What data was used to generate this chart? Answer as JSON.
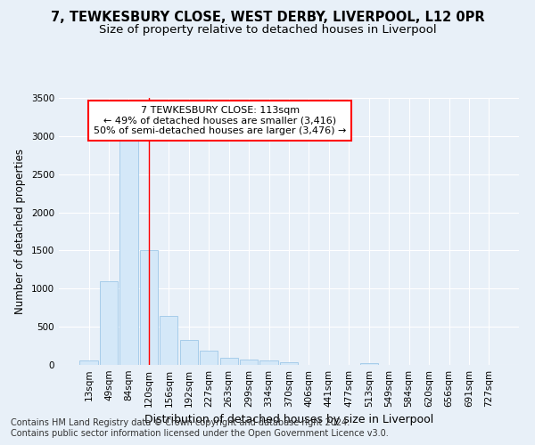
{
  "title_line1": "7, TEWKESBURY CLOSE, WEST DERBY, LIVERPOOL, L12 0PR",
  "title_line2": "Size of property relative to detached houses in Liverpool",
  "xlabel": "Distribution of detached houses by size in Liverpool",
  "ylabel": "Number of detached properties",
  "bar_color": "#d4e8f8",
  "bar_edge_color": "#9ec8e8",
  "categories": [
    "13sqm",
    "49sqm",
    "84sqm",
    "120sqm",
    "156sqm",
    "192sqm",
    "227sqm",
    "263sqm",
    "299sqm",
    "334sqm",
    "370sqm",
    "406sqm",
    "441sqm",
    "477sqm",
    "513sqm",
    "549sqm",
    "584sqm",
    "620sqm",
    "656sqm",
    "691sqm",
    "727sqm"
  ],
  "values": [
    55,
    1100,
    2940,
    1510,
    640,
    330,
    185,
    90,
    75,
    55,
    30,
    0,
    0,
    0,
    25,
    0,
    0,
    0,
    0,
    0,
    0
  ],
  "ylim": [
    0,
    3500
  ],
  "yticks": [
    0,
    500,
    1000,
    1500,
    2000,
    2500,
    3000,
    3500
  ],
  "property_line_x": 3.0,
  "annotation_line1": "7 TEWKESBURY CLOSE: 113sqm",
  "annotation_line2": "← 49% of detached houses are smaller (3,416)",
  "annotation_line3": "50% of semi-detached houses are larger (3,476) →",
  "annotation_box_color": "white",
  "annotation_box_edge_color": "red",
  "footer_line1": "Contains HM Land Registry data © Crown copyright and database right 2024.",
  "footer_line2": "Contains public sector information licensed under the Open Government Licence v3.0.",
  "background_color": "#e8f0f8",
  "plot_bg_color": "#e8f0f8",
  "grid_color": "#ffffff",
  "title_fontsize": 10.5,
  "subtitle_fontsize": 9.5,
  "ylabel_fontsize": 8.5,
  "xlabel_fontsize": 9,
  "tick_fontsize": 7.5,
  "annotation_fontsize": 8,
  "footer_fontsize": 7
}
